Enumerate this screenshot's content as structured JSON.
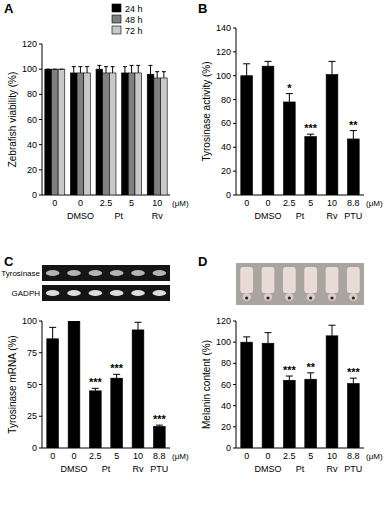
{
  "chart_data": [
    {
      "type": "bar",
      "panel": "A",
      "y_label": "Zebrafish viability (%)",
      "categories": [
        "0",
        "0",
        "2.5",
        "5",
        "10"
      ],
      "group_labels": [
        {
          "label": "DMSO",
          "categories": [
            1
          ]
        },
        {
          "label": "Pt",
          "categories": [
            2,
            3
          ]
        },
        {
          "label": "Rv",
          "categories": [
            4
          ]
        }
      ],
      "x_unit": "(μM)",
      "series": [
        {
          "name": "24 h",
          "color": "#000000",
          "values": [
            100,
            97,
            100,
            97,
            96
          ],
          "errors": [
            0,
            5,
            3,
            5,
            7
          ]
        },
        {
          "name": "48 h",
          "color": "#808080",
          "values": [
            100,
            97,
            97,
            97,
            93
          ],
          "errors": [
            0,
            5,
            5,
            6,
            5
          ]
        },
        {
          "name": "72 h",
          "color": "#c8c8c8",
          "values": [
            100,
            97,
            97,
            97,
            93
          ],
          "errors": [
            0,
            5,
            5,
            6,
            5
          ]
        }
      ],
      "ylim": [
        0,
        120
      ],
      "yticks": [
        0,
        20,
        40,
        60,
        80,
        100,
        120
      ],
      "legend": "top"
    },
    {
      "type": "bar",
      "panel": "B",
      "y_label": "Tyrosinase activity (%)",
      "categories": [
        "0",
        "0",
        "2.5",
        "5",
        "10",
        "8.8"
      ],
      "group_labels": [
        {
          "label": "DMSO",
          "categories": [
            1
          ]
        },
        {
          "label": "Pt",
          "categories": [
            2,
            3
          ]
        },
        {
          "label": "Rv",
          "categories": [
            4
          ]
        },
        {
          "label": "PTU",
          "categories": [
            5
          ]
        }
      ],
      "x_unit": "(μM)",
      "color": "#000000",
      "values": [
        100,
        108,
        78,
        49,
        101,
        47
      ],
      "errors": [
        10,
        4,
        7,
        2,
        11,
        7
      ],
      "significance": [
        null,
        null,
        "*",
        "***",
        null,
        "**"
      ],
      "ylim": [
        0,
        140
      ],
      "yticks": [
        0,
        20,
        40,
        60,
        80,
        100,
        120,
        140
      ]
    },
    {
      "type": "bar",
      "panel": "C",
      "y_label": "Tyrosinase mRNA (%)",
      "blot_labels": [
        "Tyrosinase",
        "GADPH"
      ],
      "categories": [
        "0",
        "0",
        "2.5",
        "5",
        "10",
        "8.8"
      ],
      "group_labels": [
        {
          "label": "DMSO",
          "categories": [
            1
          ]
        },
        {
          "label": "Pt",
          "categories": [
            2,
            3
          ]
        },
        {
          "label": "Rv",
          "categories": [
            4
          ]
        },
        {
          "label": "PTU",
          "categories": [
            5
          ]
        }
      ],
      "x_unit": "(μM)",
      "color": "#000000",
      "values": [
        86,
        100,
        45,
        55,
        93,
        17
      ],
      "errors": [
        9,
        0,
        2,
        3,
        6,
        1
      ],
      "significance": [
        null,
        null,
        "***",
        "***",
        null,
        "***"
      ],
      "ylim": [
        0,
        100
      ],
      "yticks": [
        0,
        25,
        50,
        75,
        100
      ]
    },
    {
      "type": "bar",
      "panel": "D",
      "y_label": "Melanin content (%)",
      "categories": [
        "0",
        "0",
        "2.5",
        "5",
        "10",
        "8.8"
      ],
      "group_labels": [
        {
          "label": "DMSO",
          "categories": [
            1
          ]
        },
        {
          "label": "Pt",
          "categories": [
            2,
            3
          ]
        },
        {
          "label": "Rv",
          "categories": [
            4
          ]
        },
        {
          "label": "PTU",
          "categories": [
            5
          ]
        }
      ],
      "x_unit": "(μM)",
      "color": "#000000",
      "values": [
        100,
        99,
        64,
        65,
        106,
        61
      ],
      "errors": [
        5,
        10,
        4,
        6,
        10,
        5
      ],
      "significance": [
        null,
        null,
        "***",
        "**",
        null,
        "***"
      ],
      "ylim": [
        0,
        120
      ],
      "yticks": [
        0,
        20,
        40,
        60,
        80,
        100,
        120
      ]
    }
  ]
}
